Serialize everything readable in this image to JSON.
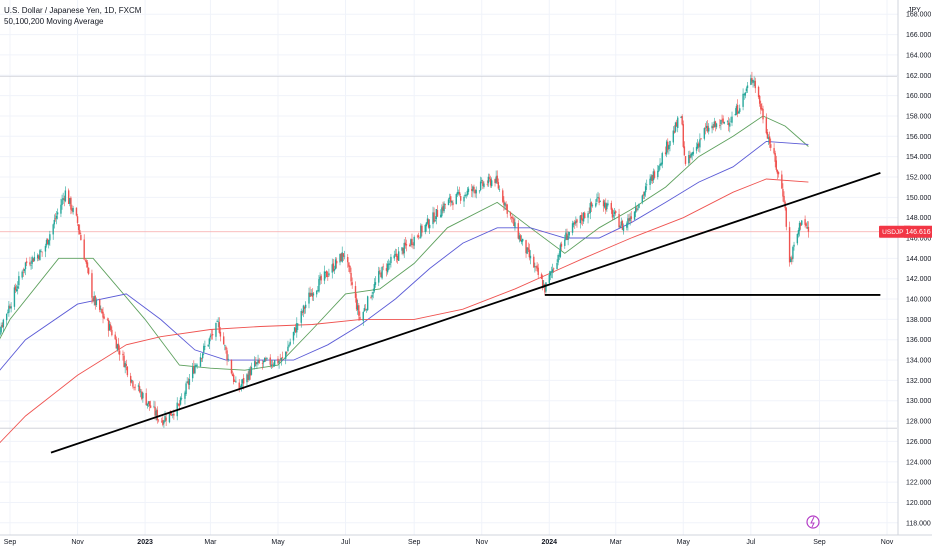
{
  "legend": {
    "title": "U.S. Dollar / Japanese Yen, 1D, FXCM",
    "indicator": "50,100,200 Moving Average"
  },
  "currency_label": "JPY",
  "price_badge": {
    "symbol": "USDJPY",
    "price": "146.616",
    "color": "#f23645"
  },
  "colors": {
    "up": "#26a69a",
    "down": "#ef5350",
    "ma50": "#5da05d",
    "ma100": "#5b5bd6",
    "ma200": "#ef5350",
    "trendline": "#000000",
    "price_line": "#f7a8a8"
  },
  "chart_data": {
    "type": "candlestick",
    "title": "U.S. Dollar / Japanese Yen, 1D, FXCM",
    "ylabel": "JPY",
    "ylim": [
      116.8,
      169.4
    ],
    "y_ticks": [
      "118.000",
      "120.000",
      "122.000",
      "124.000",
      "126.000",
      "128.000",
      "130.000",
      "132.000",
      "134.000",
      "136.000",
      "138.000",
      "140.000",
      "142.000",
      "144.000",
      "146.000",
      "148.000",
      "150.000",
      "152.000",
      "154.000",
      "156.000",
      "158.000",
      "160.000",
      "162.000",
      "164.000",
      "166.000",
      "168.000"
    ],
    "x_ticks": [
      {
        "label": "Sep",
        "date": "2022-09-01",
        "bold": false
      },
      {
        "label": "Nov",
        "date": "2022-11-01",
        "bold": false
      },
      {
        "label": "2023",
        "date": "2023-01-01",
        "bold": true
      },
      {
        "label": "Mar",
        "date": "2023-03-01",
        "bold": false
      },
      {
        "label": "May",
        "date": "2023-05-01",
        "bold": false
      },
      {
        "label": "Jul",
        "date": "2023-07-01",
        "bold": false
      },
      {
        "label": "Sep",
        "date": "2023-09-01",
        "bold": false
      },
      {
        "label": "Nov",
        "date": "2023-11-01",
        "bold": false
      },
      {
        "label": "2024",
        "date": "2024-01-01",
        "bold": true
      },
      {
        "label": "Mar",
        "date": "2024-03-01",
        "bold": false
      },
      {
        "label": "May",
        "date": "2024-05-01",
        "bold": false
      },
      {
        "label": "Jul",
        "date": "2024-07-01",
        "bold": false
      },
      {
        "label": "Sep",
        "date": "2024-09-01",
        "bold": false
      },
      {
        "label": "Nov",
        "date": "2024-11-01",
        "bold": false
      }
    ],
    "xlim": [
      "2022-09-01",
      "2024-11-10"
    ],
    "price_path": [
      [
        "2022-08-15",
        135.0
      ],
      [
        "2022-09-01",
        139.5
      ],
      [
        "2022-09-15",
        143.5
      ],
      [
        "2022-10-01",
        144.7
      ],
      [
        "2022-10-21",
        150.5
      ],
      [
        "2022-11-01",
        147.5
      ],
      [
        "2022-11-15",
        140.0
      ],
      [
        "2022-12-01",
        137.0
      ],
      [
        "2022-12-20",
        132.0
      ],
      [
        "2023-01-15",
        128.0
      ],
      [
        "2023-02-01",
        129.5
      ],
      [
        "2023-02-15",
        133.5
      ],
      [
        "2023-03-08",
        137.5
      ],
      [
        "2023-03-25",
        131.0
      ],
      [
        "2023-04-10",
        133.5
      ],
      [
        "2023-05-05",
        134.0
      ],
      [
        "2023-05-30",
        140.5
      ],
      [
        "2023-06-30",
        144.5
      ],
      [
        "2023-07-14",
        138.0
      ],
      [
        "2023-08-01",
        142.5
      ],
      [
        "2023-09-01",
        146.0
      ],
      [
        "2023-10-01",
        149.5
      ],
      [
        "2023-11-13",
        151.8
      ],
      [
        "2023-12-01",
        147.0
      ],
      [
        "2023-12-28",
        141.0
      ],
      [
        "2024-01-15",
        146.0
      ],
      [
        "2024-02-15",
        150.0
      ],
      [
        "2024-03-08",
        147.0
      ],
      [
        "2024-03-31",
        151.3
      ],
      [
        "2024-04-29",
        158.0
      ],
      [
        "2024-05-03",
        153.0
      ],
      [
        "2024-05-20",
        156.5
      ],
      [
        "2024-06-15",
        157.8
      ],
      [
        "2024-07-03",
        161.9
      ],
      [
        "2024-07-12",
        158.0
      ],
      [
        "2024-07-31",
        150.0
      ],
      [
        "2024-08-05",
        143.5
      ],
      [
        "2024-08-16",
        148.0
      ],
      [
        "2024-08-22",
        146.6
      ]
    ],
    "series": [
      {
        "name": "50",
        "values": [
          [
            "2022-08-15",
            134.5
          ],
          [
            "2022-09-01",
            138.0
          ],
          [
            "2022-10-15",
            144.0
          ],
          [
            "2022-11-15",
            144.0
          ],
          [
            "2023-01-01",
            138.0
          ],
          [
            "2023-02-01",
            133.5
          ],
          [
            "2023-03-01",
            133.2
          ],
          [
            "2023-04-01",
            133.0
          ],
          [
            "2023-05-01",
            133.5
          ],
          [
            "2023-06-01",
            137.0
          ],
          [
            "2023-07-01",
            140.5
          ],
          [
            "2023-08-01",
            141.0
          ],
          [
            "2023-09-01",
            143.5
          ],
          [
            "2023-10-01",
            147.0
          ],
          [
            "2023-11-15",
            149.5
          ],
          [
            "2023-12-15",
            147.0
          ],
          [
            "2024-01-15",
            144.5
          ],
          [
            "2024-02-15",
            147.0
          ],
          [
            "2024-03-15",
            148.8
          ],
          [
            "2024-04-15",
            151.0
          ],
          [
            "2024-05-15",
            154.0
          ],
          [
            "2024-06-15",
            156.0
          ],
          [
            "2024-07-12",
            158.0
          ],
          [
            "2024-08-01",
            157.0
          ],
          [
            "2024-08-22",
            155.0
          ]
        ]
      },
      {
        "name": "100",
        "values": [
          [
            "2022-08-15",
            132.0
          ],
          [
            "2022-09-15",
            136.0
          ],
          [
            "2022-11-01",
            139.5
          ],
          [
            "2022-12-15",
            140.5
          ],
          [
            "2023-01-15",
            138.0
          ],
          [
            "2023-02-15",
            135.0
          ],
          [
            "2023-03-15",
            134.0
          ],
          [
            "2023-04-15",
            134.0
          ],
          [
            "2023-05-15",
            134.0
          ],
          [
            "2023-06-15",
            135.5
          ],
          [
            "2023-07-15",
            137.5
          ],
          [
            "2023-08-15",
            140.0
          ],
          [
            "2023-09-15",
            143.0
          ],
          [
            "2023-10-15",
            145.5
          ],
          [
            "2023-11-15",
            147.0
          ],
          [
            "2023-12-15",
            147.0
          ],
          [
            "2024-01-15",
            146.0
          ],
          [
            "2024-02-15",
            146.0
          ],
          [
            "2024-03-15",
            147.5
          ],
          [
            "2024-04-15",
            149.5
          ],
          [
            "2024-05-15",
            151.5
          ],
          [
            "2024-06-15",
            153.0
          ],
          [
            "2024-07-15",
            155.5
          ],
          [
            "2024-08-22",
            155.2
          ]
        ]
      },
      {
        "name": "200",
        "values": [
          [
            "2022-08-15",
            125.0
          ],
          [
            "2022-09-15",
            128.5
          ],
          [
            "2022-11-01",
            132.5
          ],
          [
            "2022-12-15",
            135.5
          ],
          [
            "2023-01-15",
            136.3
          ],
          [
            "2023-03-01",
            137.0
          ],
          [
            "2023-04-15",
            137.3
          ],
          [
            "2023-06-01",
            137.5
          ],
          [
            "2023-07-15",
            138.0
          ],
          [
            "2023-09-01",
            138.0
          ],
          [
            "2023-10-15",
            139.0
          ],
          [
            "2023-12-01",
            141.0
          ],
          [
            "2024-01-01",
            142.5
          ],
          [
            "2024-02-01",
            144.0
          ],
          [
            "2024-03-15",
            146.0
          ],
          [
            "2024-05-01",
            148.0
          ],
          [
            "2024-06-15",
            150.5
          ],
          [
            "2024-07-15",
            151.8
          ],
          [
            "2024-08-22",
            151.5
          ]
        ]
      }
    ],
    "annotations": [
      {
        "type": "trendline",
        "from": [
          "2022-10-08",
          124.9
        ],
        "to": [
          "2024-10-26",
          152.4
        ]
      },
      {
        "type": "horizontal",
        "from": [
          "2023-12-28",
          140.4
        ],
        "to": [
          "2024-10-26",
          140.4
        ]
      },
      {
        "type": "horizontal",
        "from": [
          "2022-08-15",
          161.9
        ],
        "to": [
          "2024-11-10",
          161.9
        ],
        "style": "thin"
      },
      {
        "type": "horizontal",
        "from": [
          "2022-08-15",
          127.3
        ],
        "to": [
          "2024-11-10",
          127.3
        ],
        "style": "thin"
      }
    ]
  }
}
